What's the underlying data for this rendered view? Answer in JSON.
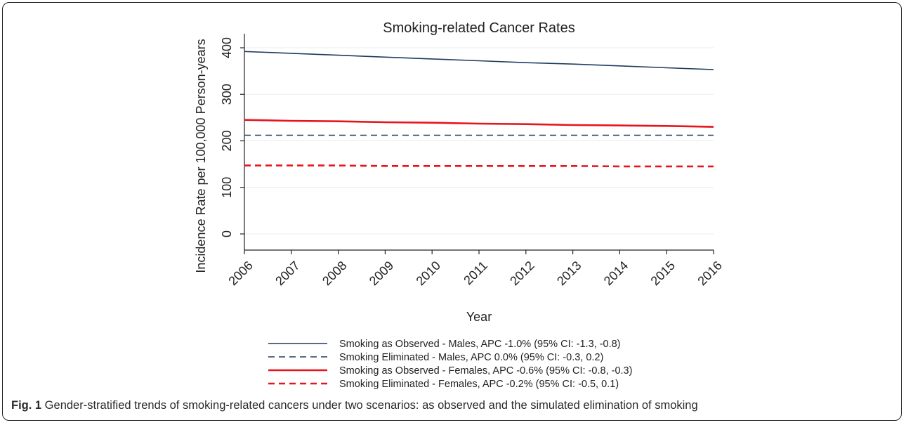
{
  "chart_data": {
    "type": "line",
    "title": "Smoking-related Cancer Rates",
    "xlabel": "Year",
    "ylabel": "Incidence Rate per 100,000 Person-years",
    "x": [
      2006,
      2007,
      2008,
      2009,
      2010,
      2011,
      2012,
      2013,
      2014,
      2015,
      2016
    ],
    "xlim": [
      2006,
      2016
    ],
    "ylim": [
      0,
      400
    ],
    "yticks": [
      0,
      100,
      200,
      300,
      400
    ],
    "grid": true,
    "legend_position": "bottom",
    "series": [
      {
        "name": "Smoking as Observed - Males, APC -1.0% (95% CI: -1.3, -0.8)",
        "color": "#1f3b5e",
        "style": "solid",
        "values": [
          392,
          388,
          384,
          380,
          376,
          372,
          368,
          365,
          361,
          357,
          353
        ]
      },
      {
        "name": "Smoking Eliminated - Males, APC 0.0% (95% CI: -0.3, 0.2)",
        "color": "#1f3b5e",
        "style": "dashed",
        "values": [
          212,
          212,
          212,
          212,
          212,
          212,
          212,
          212,
          212,
          212,
          212
        ]
      },
      {
        "name": "Smoking as Observed - Females, APC -0.6% (95% CI: -0.8, -0.3)",
        "color": "#e8141c",
        "style": "solid",
        "values": [
          245,
          243,
          242,
          240,
          239,
          237,
          236,
          234,
          233,
          232,
          230
        ]
      },
      {
        "name": "Smoking Eliminated - Females, APC -0.2% (95% CI: -0.5, 0.1)",
        "color": "#e8141c",
        "style": "dashed",
        "values": [
          147,
          147,
          147,
          146,
          146,
          146,
          146,
          146,
          145,
          145,
          145
        ]
      }
    ]
  },
  "caption": {
    "label": "Fig. 1",
    "text": " Gender-stratified trends of smoking-related cancers under two scenarios: as observed and the simulated elimination of smoking"
  }
}
